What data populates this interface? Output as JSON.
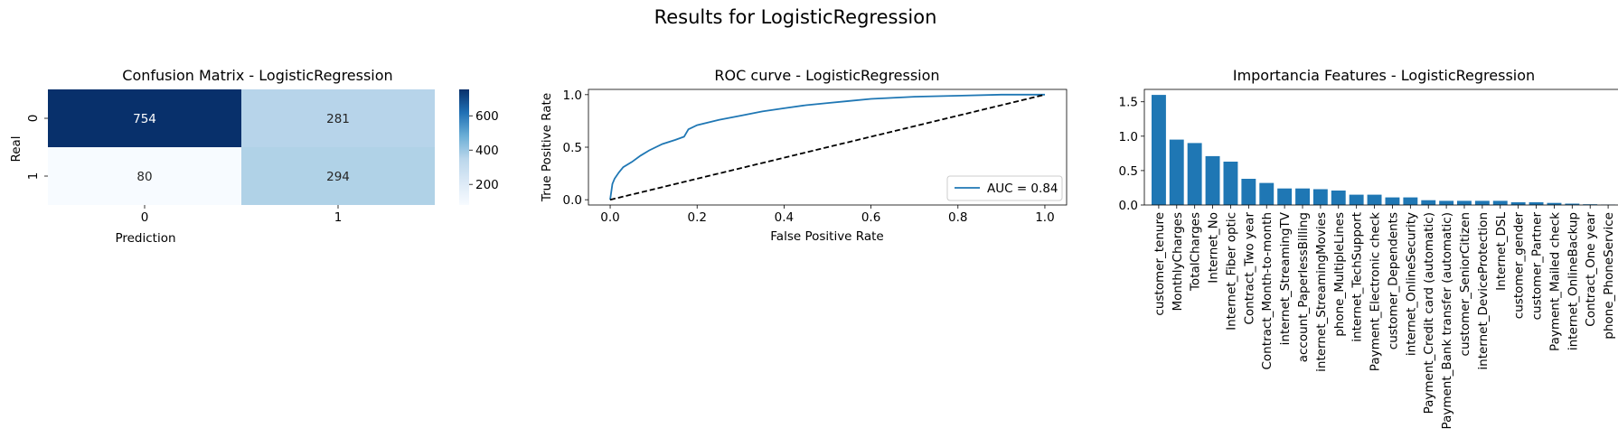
{
  "figure": {
    "title": "Results for LogisticRegression"
  },
  "chart_data": [
    {
      "type": "heatmap",
      "title": "Confusion Matrix - LogisticRegression",
      "xlabel": "Prediction",
      "ylabel": "Real",
      "x_categories": [
        "0",
        "1"
      ],
      "y_categories": [
        "0",
        "1"
      ],
      "values": [
        [
          754,
          281
        ],
        [
          80,
          294
        ]
      ],
      "colormap": "Blues",
      "colorbar": {
        "range": [
          80,
          754
        ],
        "ticks": [
          200,
          400,
          600
        ]
      },
      "annotations": true
    },
    {
      "type": "line",
      "title": "ROC curve - LogisticRegression",
      "xlabel": "False Positive Rate",
      "ylabel": "True Positive Rate",
      "xlim": [
        -0.05,
        1.05
      ],
      "ylim": [
        -0.05,
        1.05
      ],
      "xticks": [
        "0.0",
        "0.2",
        "0.4",
        "0.6",
        "0.8",
        "1.0"
      ],
      "yticks": [
        "0.0",
        "0.5",
        "1.0"
      ],
      "legend_position": "bottom-right",
      "series": [
        {
          "name": "AUC = 0.84",
          "color": "#1f77b4",
          "style": "solid",
          "x": [
            0,
            0.005,
            0.01,
            0.02,
            0.03,
            0.05,
            0.07,
            0.09,
            0.12,
            0.15,
            0.17,
            0.18,
            0.2,
            0.25,
            0.3,
            0.35,
            0.4,
            0.45,
            0.5,
            0.55,
            0.6,
            0.7,
            0.8,
            0.9,
            1.0
          ],
          "y": [
            0,
            0.15,
            0.2,
            0.26,
            0.31,
            0.36,
            0.42,
            0.47,
            0.53,
            0.57,
            0.6,
            0.67,
            0.71,
            0.76,
            0.8,
            0.84,
            0.87,
            0.9,
            0.92,
            0.94,
            0.96,
            0.98,
            0.99,
            1.0,
            1.0
          ]
        },
        {
          "name": "",
          "color": "#000000",
          "style": "dashed",
          "x": [
            0,
            1
          ],
          "y": [
            0,
            1
          ]
        }
      ]
    },
    {
      "type": "bar",
      "title": "Importancia Features - LogisticRegression",
      "color": "#1f77b4",
      "ylim": [
        0,
        1.68
      ],
      "yticks": [
        "0.0",
        "0.5",
        "1.0",
        "1.5"
      ],
      "categories": [
        "customer_tenure",
        "MonthlyCharges",
        "TotalCharges",
        "Internet_No",
        "Internet_Fiber optic",
        "Contract_Two year",
        "Contract_Month-to-month",
        "internet_StreamingTV",
        "account_PaperlessBilling",
        "internet_StreamingMovies",
        "phone_MultipleLines",
        "internet_TechSupport",
        "Payment_Electronic check",
        "customer_Dependents",
        "internet_OnlineSecurity",
        "Payment_Credit card (automatic)",
        "Payment_Bank transfer (automatic)",
        "customer_SeniorCitizen",
        "internet_DeviceProtection",
        "Internet_DSL",
        "customer_gender",
        "customer_Partner",
        "Payment_Mailed check",
        "internet_OnlineBackup",
        "Contract_One year",
        "phone_PhoneService"
      ],
      "values": [
        1.6,
        0.95,
        0.9,
        0.71,
        0.63,
        0.38,
        0.32,
        0.24,
        0.24,
        0.23,
        0.21,
        0.15,
        0.15,
        0.11,
        0.11,
        0.07,
        0.06,
        0.06,
        0.06,
        0.06,
        0.04,
        0.04,
        0.03,
        0.02,
        0.01,
        0.005
      ]
    }
  ]
}
